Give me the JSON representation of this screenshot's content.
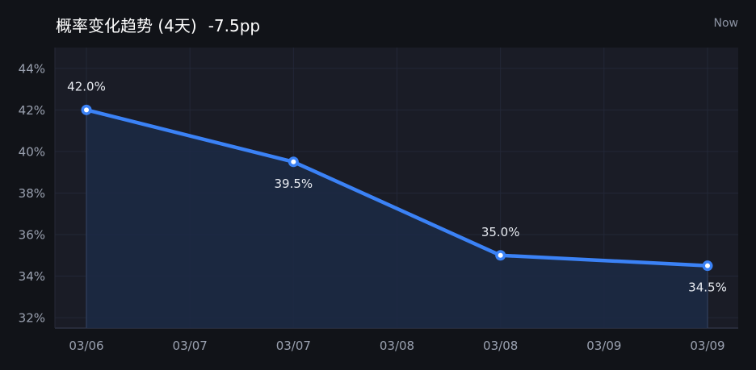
{
  "header": {
    "title": "概率变化趋势 (4天)",
    "change": "-7.5pp",
    "time_label": "Now"
  },
  "colors": {
    "background": "#111318",
    "plot_background": "#1a1c26",
    "line": "#3b82f6",
    "area": "#1c2a45",
    "grid": "#232737"
  },
  "chart_data": {
    "type": "area",
    "x": [
      "03/06",
      "03/07",
      "03/08",
      "03/09"
    ],
    "x_ticks": [
      "03/06",
      "03/07",
      "03/07",
      "03/08",
      "03/08",
      "03/09",
      "03/09"
    ],
    "series": [
      {
        "values": [
          42.0,
          39.5,
          35.0,
          34.5
        ],
        "labels": [
          "42.0%",
          "39.5%",
          "35.0%",
          "34.5%"
        ]
      }
    ],
    "ylim": [
      31.5,
      45
    ],
    "y_ticks": [
      32,
      34,
      36,
      38,
      40,
      42,
      44
    ],
    "y_tick_labels": [
      "32%",
      "34%",
      "36%",
      "38%",
      "40%",
      "42%",
      "44%"
    ],
    "grid": true,
    "xlabel": "",
    "ylabel": ""
  }
}
